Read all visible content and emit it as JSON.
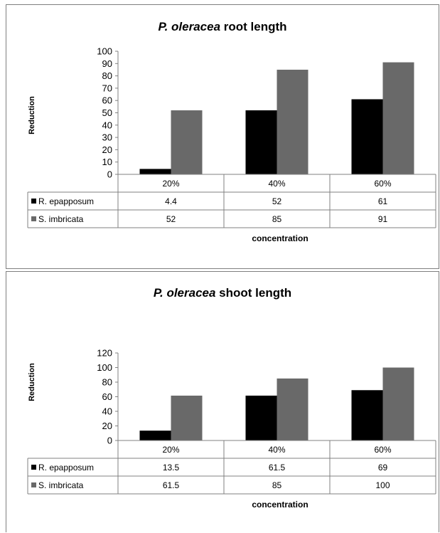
{
  "chart_data": [
    {
      "type": "bar",
      "title_italic": "P. oleracea",
      "title_rest": " root length",
      "ylabel": "Reduction",
      "xlabel": "concentration",
      "categories": [
        "20%",
        "40%",
        "60%"
      ],
      "ylim": [
        0,
        100
      ],
      "yticks": [
        0,
        10,
        20,
        30,
        40,
        50,
        60,
        70,
        80,
        90,
        100
      ],
      "series": [
        {
          "name": "R. epapposum",
          "color": "#000000",
          "values": [
            4.4,
            52,
            61
          ],
          "labels": [
            "4.4",
            "52",
            "61"
          ]
        },
        {
          "name": "S. imbricata",
          "color": "#696969",
          "values": [
            52,
            85,
            91
          ],
          "labels": [
            "52",
            "85",
            "91"
          ]
        }
      ],
      "legend": "data-table",
      "grid": false
    },
    {
      "type": "bar",
      "title_italic": "P. oleracea",
      "title_rest": " shoot length",
      "ylabel": "Reduction",
      "xlabel": "concentration",
      "categories": [
        "20%",
        "40%",
        "60%"
      ],
      "ylim": [
        0,
        120
      ],
      "yticks": [
        0,
        20,
        40,
        60,
        80,
        100,
        120
      ],
      "series": [
        {
          "name": "R. epapposum",
          "color": "#000000",
          "values": [
            13.5,
            61.5,
            69
          ],
          "labels": [
            "13.5",
            "61.5",
            "69"
          ]
        },
        {
          "name": "S. imbricata",
          "color": "#696969",
          "values": [
            61.5,
            85,
            100
          ],
          "labels": [
            "61.5",
            "85",
            "100"
          ]
        }
      ],
      "legend": "data-table",
      "grid": false
    }
  ]
}
